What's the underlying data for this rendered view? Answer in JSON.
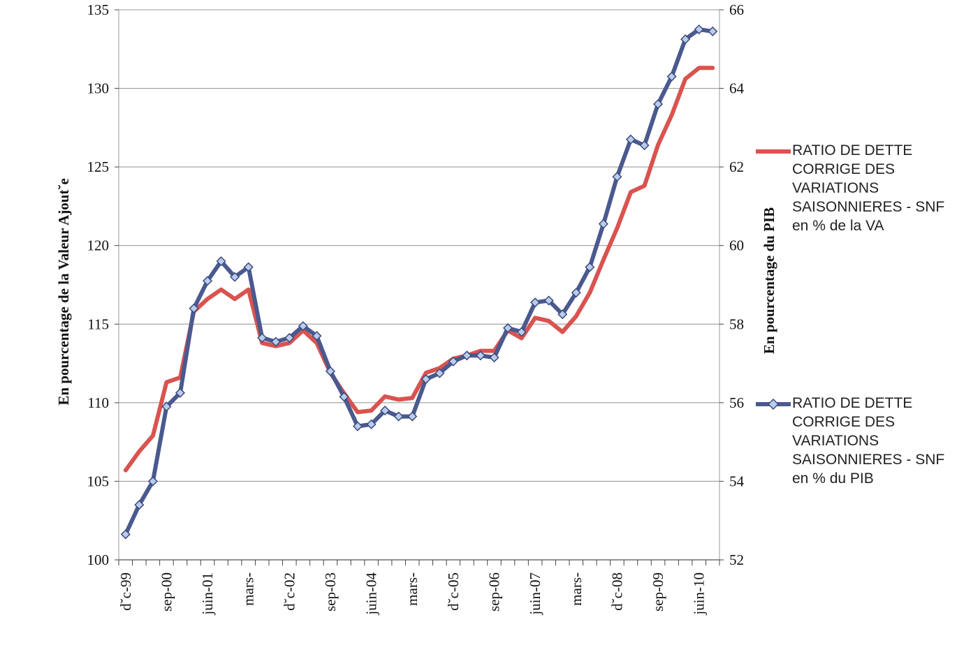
{
  "chart_data": {
    "type": "line",
    "ylabel": "En pourcentage de la Valeur Ajout˘e",
    "y2label": "En pourcentage du PIB",
    "ylim": [
      100,
      135
    ],
    "y2lim": [
      52,
      66
    ],
    "yticks": [
      "100",
      "105",
      "110",
      "115",
      "120",
      "125",
      "130",
      "135"
    ],
    "y2ticks": [
      "52",
      "54",
      "56",
      "58",
      "60",
      "62",
      "64",
      "66"
    ],
    "xtick_labels": [
      "d˘c-99",
      "sep-00",
      "juin-01",
      "mars-",
      "d˘c-02",
      "sep-03",
      "juin-04",
      "mars-",
      "d˘c-05",
      "sep-06",
      "juin-07",
      "mars-",
      "d˘c-08",
      "sep-09",
      "juin-10"
    ],
    "xtick_every": 3,
    "grid": "horizontal",
    "legend_position": "right",
    "series": [
      {
        "name": "RATIO DE DETTE CORRIGE DES VARIATIONS SAISONNIERES - SNF en % de la VA",
        "axis": "left",
        "color": "#d9534f",
        "marker": "none",
        "values": [
          105.7,
          106.9,
          107.9,
          111.3,
          111.6,
          115.8,
          116.6,
          117.2,
          116.6,
          117.2,
          113.8,
          113.6,
          113.8,
          114.6,
          113.8,
          111.9,
          110.6,
          109.4,
          109.5,
          110.4,
          110.2,
          110.3,
          111.9,
          112.2,
          112.8,
          113.0,
          113.3,
          113.3,
          114.6,
          114.1,
          115.4,
          115.2,
          114.5,
          115.5,
          117.0,
          119.1,
          121.1,
          123.4,
          123.8,
          126.4,
          128.3,
          130.6,
          131.3,
          131.3
        ]
      },
      {
        "name": "RATIO DE DETTE CORRIGE DES VARIATIONS SAISONNIERES - SNF en % du PIB",
        "axis": "right",
        "color": "#4a5a8f",
        "marker": "diamond",
        "values": [
          52.65,
          53.4,
          54.0,
          55.9,
          56.25,
          58.4,
          59.1,
          59.6,
          59.2,
          59.45,
          57.65,
          57.55,
          57.65,
          57.95,
          57.7,
          56.8,
          56.15,
          55.4,
          55.45,
          55.8,
          55.65,
          55.65,
          56.6,
          56.75,
          57.05,
          57.2,
          57.2,
          57.15,
          57.9,
          57.8,
          58.55,
          58.6,
          58.25,
          58.8,
          59.45,
          60.55,
          61.75,
          62.7,
          62.55,
          63.6,
          64.3,
          65.25,
          65.5,
          65.45
        ]
      }
    ]
  }
}
